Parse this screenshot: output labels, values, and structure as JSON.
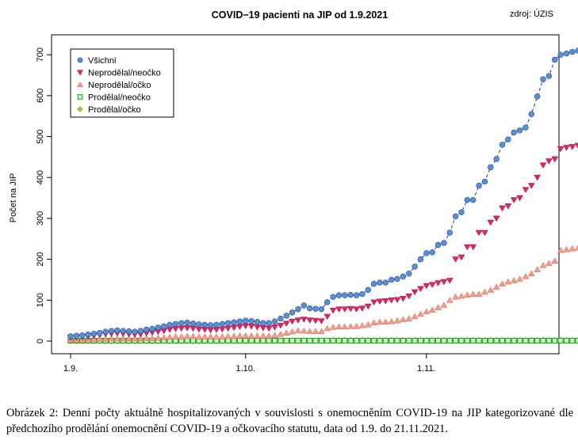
{
  "source_note": "zdroj: ÚZIS",
  "caption": "Obrázek 2: Denní počty aktuálně hospitalizovaných v souvislosti s onemocněním COVID-19 na JIP kategorizované dle předchozího prodělání onemocnění COVID-19 a očkovacího statutu, data od 1.9. do 21.11.2021.",
  "chart_data": {
    "type": "scatter",
    "title": "COVID−19 pacienti na JIP od 1.9.2021",
    "xlabel": "",
    "ylabel": "Počet na JIP",
    "x_tick_labels": [
      "1.9.",
      "1.10.",
      "1.11."
    ],
    "x_tick_days": [
      0,
      30,
      61
    ],
    "xlim": [
      0,
      81
    ],
    "ylim": [
      0,
      710
    ],
    "y_ticks": [
      0,
      100,
      200,
      300,
      400,
      500,
      600,
      700
    ],
    "legend_position": "top-left",
    "series": [
      {
        "name": "Všichni",
        "marker": "circle",
        "color": "#5a8fd6",
        "connected": true,
        "values": [
          12,
          13,
          14,
          16,
          18,
          20,
          23,
          25,
          26,
          25,
          24,
          23,
          25,
          28,
          30,
          33,
          36,
          40,
          42,
          44,
          45,
          43,
          41,
          40,
          39,
          40,
          42,
          44,
          46,
          48,
          50,
          49,
          47,
          44,
          44,
          48,
          55,
          62,
          70,
          78,
          87,
          80,
          79,
          78,
          95,
          108,
          112,
          112,
          113,
          112,
          115,
          125,
          140,
          143,
          143,
          150,
          152,
          158,
          165,
          182,
          200,
          215,
          217,
          235,
          240,
          265,
          305,
          315,
          345,
          345,
          380,
          390,
          425,
          445,
          480,
          493,
          510,
          515,
          522,
          555,
          598,
          640,
          648,
          688,
          700,
          703,
          707,
          710
        ]
      },
      {
        "name": "Neprodělal/neočko",
        "marker": "triangle-down",
        "color": "#e02560",
        "values": [
          8,
          9,
          10,
          11,
          13,
          15,
          17,
          18,
          19,
          18,
          17,
          16,
          17,
          19,
          21,
          23,
          25,
          28,
          30,
          31,
          32,
          31,
          29,
          28,
          27,
          28,
          29,
          31,
          33,
          35,
          37,
          36,
          34,
          32,
          31,
          34,
          38,
          43,
          48,
          51,
          53,
          51,
          50,
          49,
          60,
          75,
          78,
          78,
          79,
          78,
          80,
          85,
          95,
          97,
          98,
          100,
          101,
          104,
          110,
          120,
          128,
          135,
          138,
          142,
          145,
          148,
          200,
          205,
          230,
          230,
          265,
          265,
          290,
          300,
          325,
          330,
          345,
          350,
          370,
          380,
          400,
          430,
          440,
          445,
          470,
          473,
          475,
          478
        ]
      },
      {
        "name": "Neprodělal/očko",
        "marker": "triangle-up",
        "color": "#f39a8a",
        "values": [
          3,
          3,
          3,
          4,
          4,
          5,
          5,
          6,
          6,
          6,
          6,
          6,
          6,
          7,
          7,
          8,
          9,
          10,
          11,
          11,
          12,
          12,
          11,
          11,
          11,
          11,
          11,
          12,
          12,
          13,
          13,
          13,
          13,
          13,
          13,
          14,
          17,
          20,
          23,
          26,
          25,
          24,
          24,
          24,
          31,
          34,
          35,
          35,
          36,
          36,
          38,
          40,
          45,
          47,
          47,
          48,
          50,
          53,
          55,
          60,
          66,
          72,
          76,
          82,
          88,
          100,
          108,
          110,
          113,
          115,
          115,
          120,
          125,
          132,
          140,
          145,
          148,
          152,
          158,
          165,
          175,
          185,
          190,
          196,
          222,
          224,
          226,
          228
        ]
      },
      {
        "name": "Prodělal/neočko",
        "marker": "square",
        "color": "#18a018",
        "values": [
          1,
          1,
          1,
          1,
          1,
          1,
          1,
          1,
          1,
          1,
          1,
          1,
          1,
          1,
          1,
          1,
          1,
          1,
          1,
          1,
          1,
          1,
          1,
          1,
          1,
          1,
          1,
          1,
          1,
          1,
          1,
          1,
          1,
          1,
          1,
          1,
          1,
          1,
          1,
          1,
          1,
          1,
          1,
          1,
          1,
          1,
          1,
          1,
          1,
          1,
          1,
          1,
          1,
          1,
          1,
          1,
          1,
          1,
          1,
          1,
          1,
          1,
          1,
          1,
          1,
          1,
          1,
          1,
          1,
          1,
          1,
          1,
          1,
          1,
          1,
          1,
          1,
          1,
          1,
          1,
          1,
          1,
          1,
          1,
          1,
          1,
          1,
          1
        ]
      },
      {
        "name": "Prodělal/očko",
        "marker": "diamond",
        "color": "#9acd32",
        "values": [
          0,
          0,
          0,
          0,
          0,
          0,
          0,
          0,
          0,
          0,
          0,
          0,
          0,
          0,
          0,
          0,
          0,
          0,
          0,
          0,
          0,
          0,
          0,
          0,
          0,
          0,
          0,
          0,
          0,
          0,
          0,
          1,
          1,
          1,
          1,
          1,
          1,
          1,
          1,
          1,
          1,
          1,
          1,
          1,
          1,
          2,
          2,
          2,
          2,
          2,
          2,
          2,
          2,
          2,
          2,
          2,
          2,
          2,
          2,
          2,
          2,
          2,
          2,
          2,
          2,
          2,
          2,
          2,
          2,
          2,
          2,
          2,
          2,
          2,
          2,
          2,
          2,
          2,
          2,
          2,
          2,
          2,
          2,
          2,
          2,
          2,
          2,
          2
        ]
      }
    ]
  }
}
